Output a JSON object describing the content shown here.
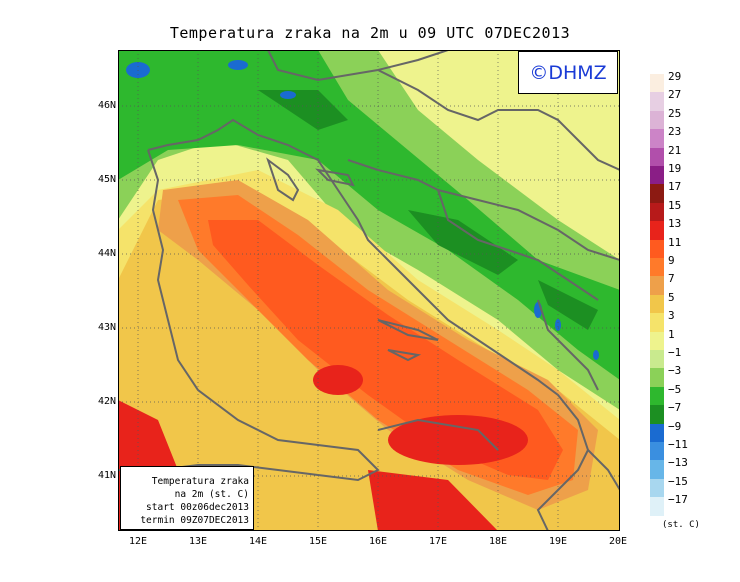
{
  "title": "Temperatura zraka na 2m u 09 UTC 07DEC2013",
  "logo_text": "©DHMZ",
  "info": {
    "line1": "Temperatura zraka",
    "line2": "na 2m (st. C)",
    "line3": "start 00z06dec2013",
    "line4": "termin 09Z07DEC2013"
  },
  "lat_labels": [
    "46N",
    "45N",
    "44N",
    "43N",
    "42N",
    "41N"
  ],
  "lon_labels": [
    "12E",
    "13E",
    "14E",
    "15E",
    "16E",
    "17E",
    "18E",
    "19E",
    "20E"
  ],
  "legend": {
    "unit": "(st. C)",
    "labels": [
      "29",
      "27",
      "25",
      "23",
      "21",
      "19",
      "17",
      "15",
      "13",
      "11",
      "9",
      "7",
      "5",
      "3",
      "1",
      "−1",
      "−3",
      "−5",
      "−7",
      "−9",
      "−11",
      "−13",
      "−15",
      "−17"
    ],
    "colors": [
      "#fbeee0",
      "#e7cfe3",
      "#dcb3d6",
      "#cc84c7",
      "#b14fab",
      "#8a1e86",
      "#8c1a12",
      "#b71a1a",
      "#e8231b",
      "#ff5a1f",
      "#ff7a2a",
      "#eea04a",
      "#f1c64a",
      "#f5e36a",
      "#eef38d",
      "#c9ea8e",
      "#8bd158",
      "#2eb82e",
      "#1c8f22",
      "#1a6bd1",
      "#3a8fe0",
      "#67b6e8",
      "#a8d7ef",
      "#dff1f8"
    ]
  }
}
